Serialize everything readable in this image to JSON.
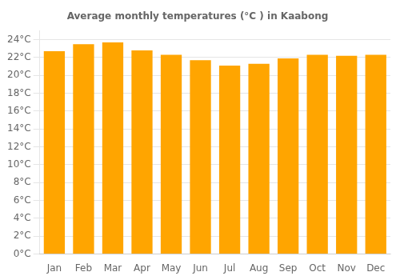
{
  "chart_data": {
    "type": "bar",
    "title": "Average monthly temperatures (°C ) in Kaabong",
    "categories": [
      "Jan",
      "Feb",
      "Mar",
      "Apr",
      "May",
      "Jun",
      "Jul",
      "Aug",
      "Sep",
      "Oct",
      "Nov",
      "Dec"
    ],
    "values": [
      22.7,
      23.5,
      23.7,
      22.8,
      22.3,
      21.7,
      21.1,
      21.3,
      21.9,
      22.3,
      22.2,
      22.3
    ],
    "color": "#FFA500",
    "ylim": [
      0,
      25
    ],
    "yticks": [
      {
        "value": 0,
        "label": "0°C"
      },
      {
        "value": 2,
        "label": "2°C"
      },
      {
        "value": 4,
        "label": "4°C"
      },
      {
        "value": 6,
        "label": "6°C"
      },
      {
        "value": 8,
        "label": "8°C"
      },
      {
        "value": 10,
        "label": "10°C"
      },
      {
        "value": 12,
        "label": "12°C"
      },
      {
        "value": 14,
        "label": "14°C"
      },
      {
        "value": 16,
        "label": "16°C"
      },
      {
        "value": 18,
        "label": "18°C"
      },
      {
        "value": 20,
        "label": "20°C"
      },
      {
        "value": 22,
        "label": "22°C"
      },
      {
        "value": 24,
        "label": "24°C"
      }
    ],
    "grid": true
  }
}
